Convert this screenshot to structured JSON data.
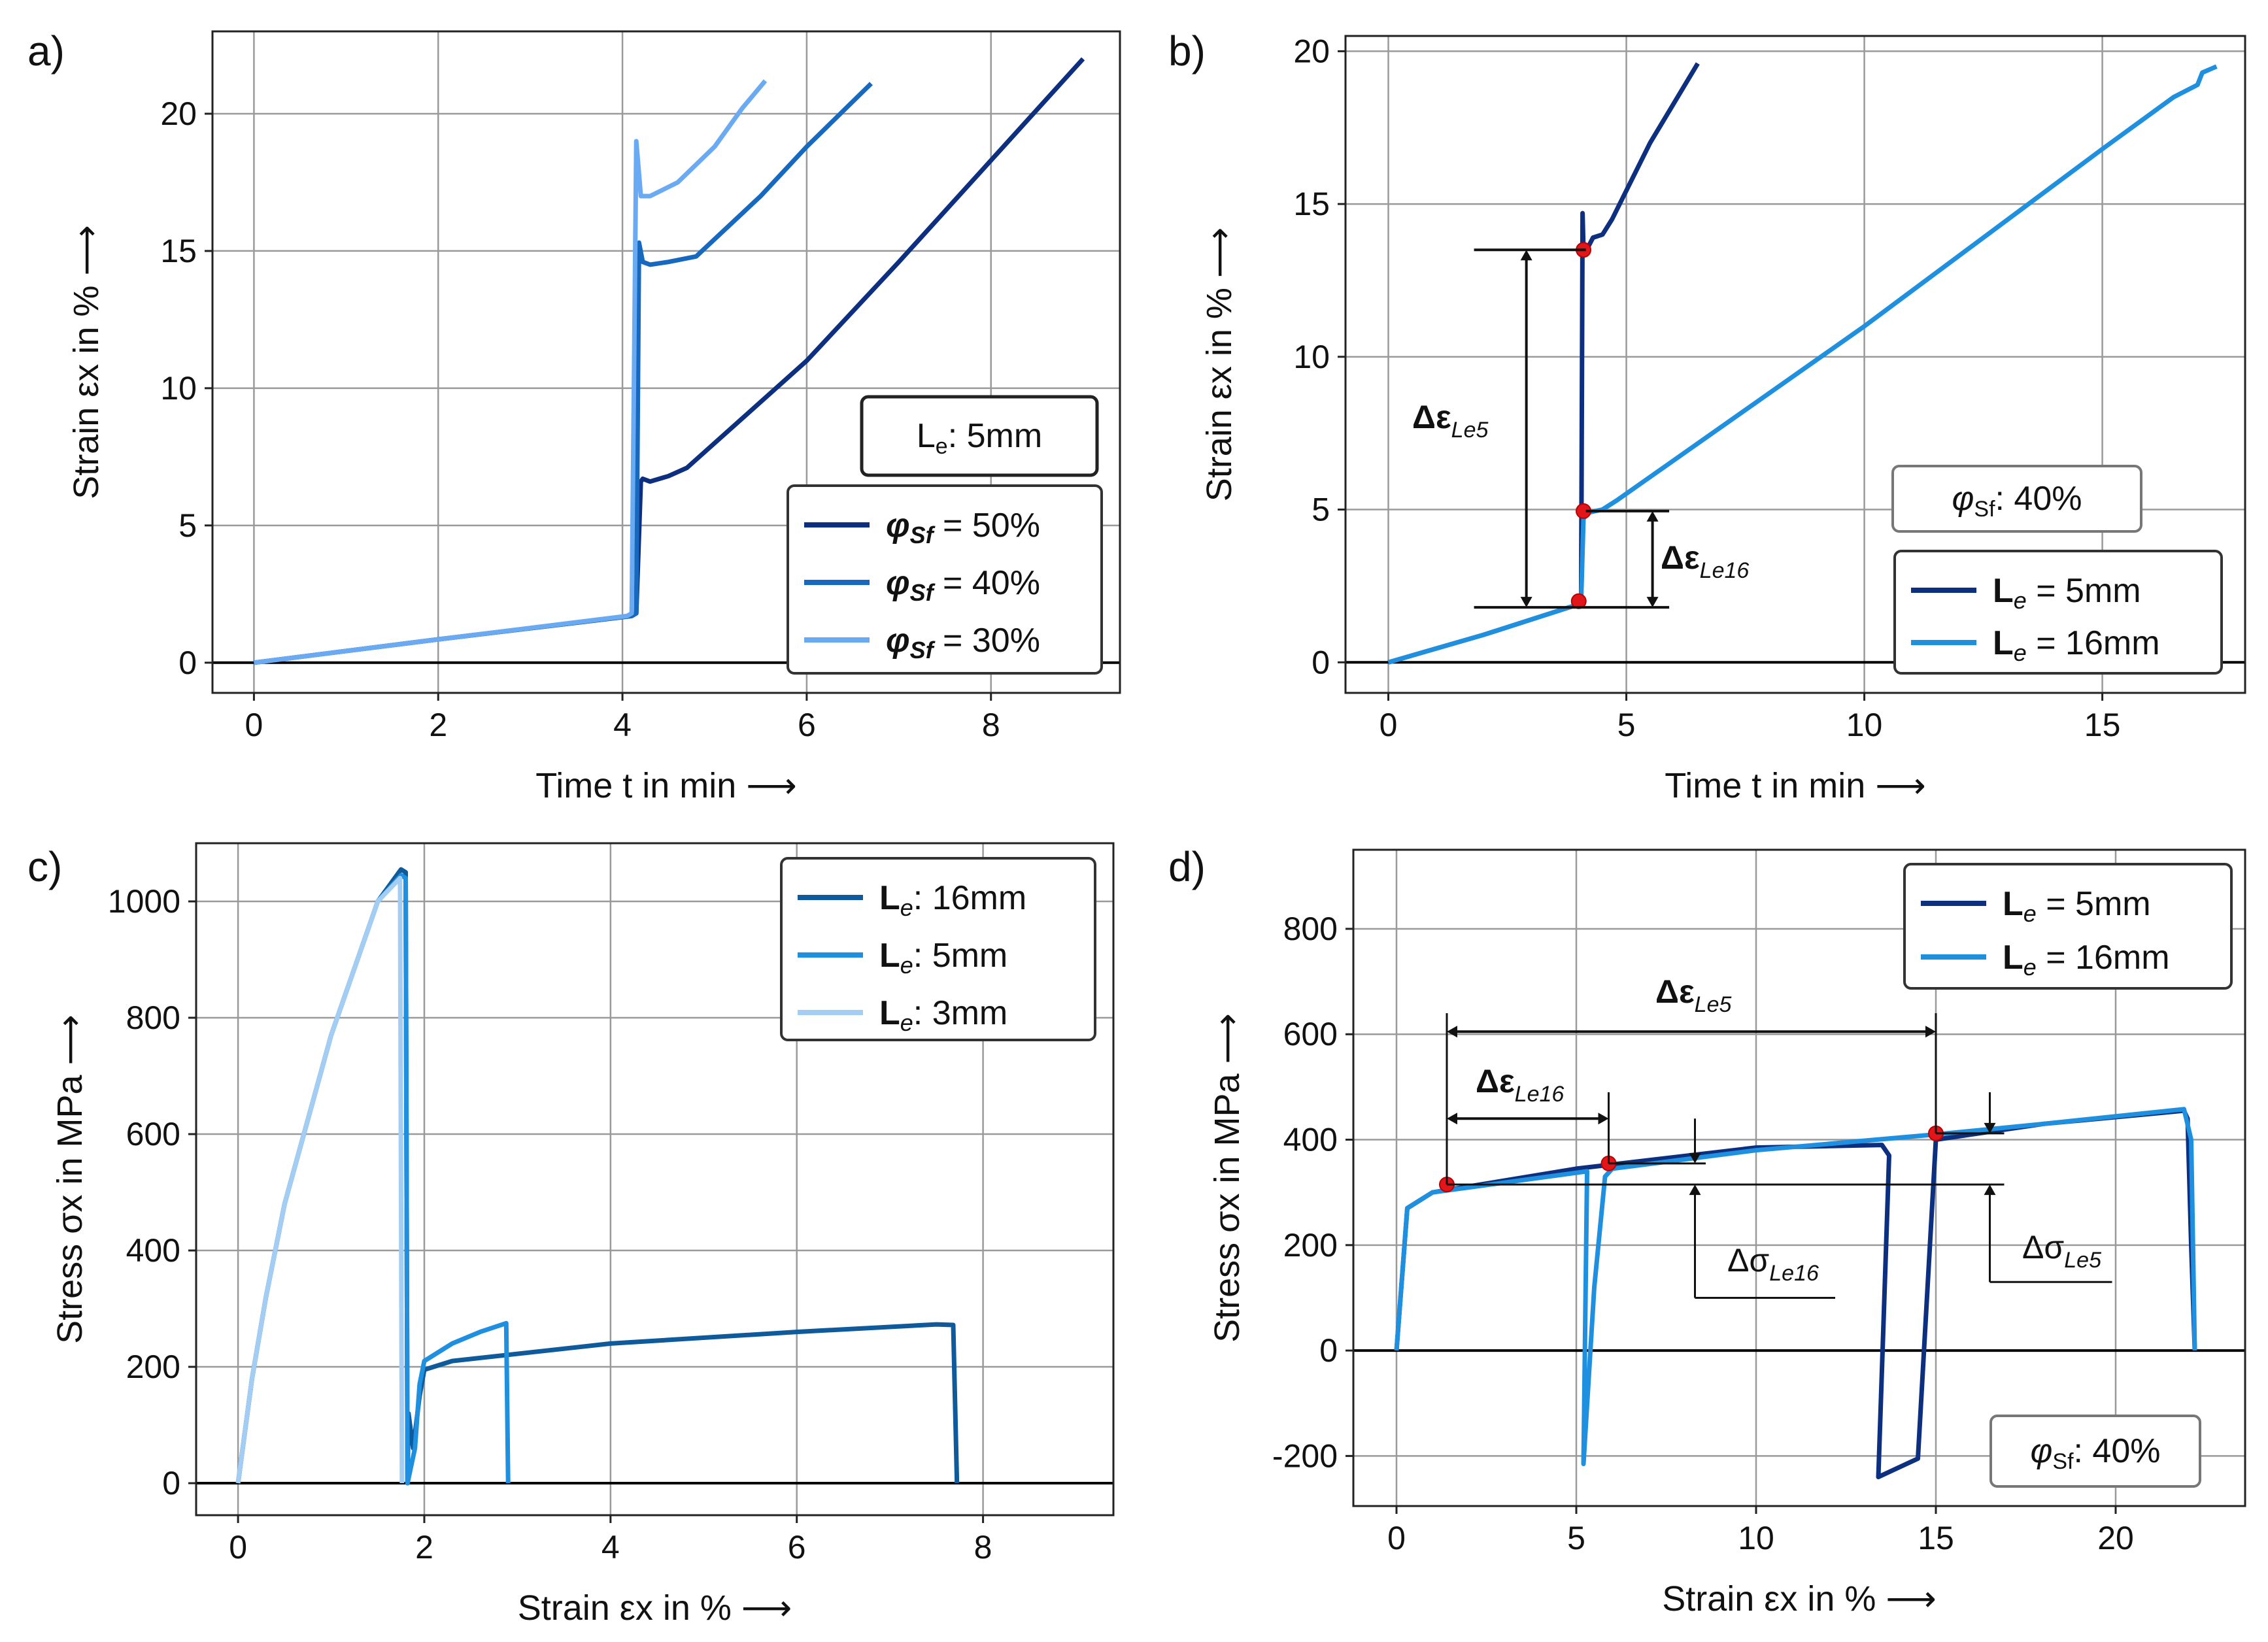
{
  "chart_data": [
    {
      "id": "a",
      "panel_label": "a)",
      "type": "line",
      "xlabel": "Time t in min",
      "ylabel": "Strain εx in %",
      "xlim": [
        -0.45,
        9.4
      ],
      "ylim": [
        -1.1,
        23.0
      ],
      "xticks": [
        0,
        2,
        4,
        6,
        8
      ],
      "yticks": [
        0,
        5,
        10,
        15,
        20
      ],
      "info_box": "Le: 5mm",
      "legend": {
        "location": "lower-right"
      },
      "series": [
        {
          "name": "φSf = 50%",
          "color": "#0d2f7f",
          "x": [
            0,
            2,
            4.1,
            4.15,
            4.2,
            4.22,
            4.3,
            4.5,
            4.7,
            6,
            7,
            8,
            9.0
          ],
          "y": [
            0,
            0.85,
            1.7,
            1.8,
            6.6,
            6.7,
            6.6,
            6.8,
            7.1,
            11.0,
            14.6,
            18.3,
            22.0
          ]
        },
        {
          "name": "φSf = 40%",
          "color": "#1769bf",
          "x": [
            0,
            2,
            4.1,
            4.15,
            4.18,
            4.22,
            4.3,
            4.5,
            4.8,
            5.5,
            6.0,
            6.7
          ],
          "y": [
            0,
            0.85,
            1.7,
            1.8,
            15.3,
            14.6,
            14.5,
            14.6,
            14.8,
            17.0,
            18.8,
            21.1
          ]
        },
        {
          "name": "φSf = 30%",
          "color": "#6aaaf2",
          "x": [
            0,
            2,
            4.05,
            4.1,
            4.15,
            4.2,
            4.3,
            4.6,
            5.0,
            5.3,
            5.55
          ],
          "y": [
            0,
            0.85,
            1.7,
            1.8,
            19.0,
            17.0,
            17.0,
            17.5,
            18.8,
            20.2,
            21.2
          ]
        }
      ]
    },
    {
      "id": "b",
      "panel_label": "b)",
      "type": "line",
      "xlabel": "Time t in min",
      "ylabel": "Strain εx in %",
      "xlim": [
        -0.9,
        18.0
      ],
      "ylim": [
        -1.0,
        20.5
      ],
      "xticks": [
        0,
        5,
        10,
        15
      ],
      "yticks": [
        0,
        5,
        10,
        15,
        20
      ],
      "info_box": "φSf: 40%",
      "legend": {
        "location": "lower-right"
      },
      "series": [
        {
          "name": "Le = 5mm",
          "color": "#0d2f7f",
          "x": [
            0,
            2,
            4.0,
            4.05,
            4.08,
            4.1,
            4.2,
            4.3,
            4.5,
            4.7,
            5.5,
            6.5
          ],
          "y": [
            0,
            0.9,
            1.9,
            2.0,
            14.7,
            13.5,
            13.6,
            13.9,
            14.0,
            14.5,
            17.0,
            19.6
          ]
        },
        {
          "name": "Le = 16mm",
          "color": "#1f90df",
          "x": [
            0,
            2,
            4.0,
            4.05,
            4.1,
            4.2,
            4.5,
            4.8,
            10,
            15,
            16.5,
            17.0,
            17.1,
            17.4
          ],
          "y": [
            0,
            0.9,
            1.9,
            2.0,
            4.7,
            4.9,
            5.0,
            5.3,
            11.0,
            16.8,
            18.5,
            18.9,
            19.3,
            19.5
          ]
        }
      ],
      "markers": [
        {
          "x": 4.1,
          "y": 13.5
        },
        {
          "x": 4.1,
          "y": 4.95
        },
        {
          "x": 4.0,
          "y": 2.0
        }
      ],
      "annotations": [
        {
          "text": "Δε",
          "sub": "Le5"
        },
        {
          "text": "Δε",
          "sub": "Le16"
        }
      ]
    },
    {
      "id": "c",
      "panel_label": "c)",
      "type": "line",
      "xlabel": "Strain εx in %",
      "ylabel": "Stress σx in MPa",
      "xlim": [
        -0.45,
        9.4
      ],
      "ylim": [
        -55,
        1100
      ],
      "xticks": [
        0,
        2,
        4,
        6,
        8
      ],
      "yticks": [
        0,
        200,
        400,
        600,
        800,
        1000
      ],
      "legend": {
        "location": "upper-right"
      },
      "series": [
        {
          "name": "Le: 16mm",
          "color": "#0e5a9a",
          "x": [
            0,
            0.15,
            0.3,
            0.5,
            1.0,
            1.5,
            1.75,
            1.8,
            1.82,
            1.83,
            1.88,
            1.95,
            2.0,
            2.3,
            4,
            6,
            7.5,
            7.68,
            7.72
          ],
          "y": [
            0,
            180,
            320,
            480,
            770,
            1000,
            1055,
            1050,
            0,
            120,
            60,
            150,
            195,
            210,
            240,
            260,
            273,
            272,
            0
          ]
        },
        {
          "name": "Le: 5mm",
          "color": "#1f90df",
          "x": [
            0,
            0.15,
            0.3,
            0.5,
            1.0,
            1.5,
            1.75,
            1.8,
            1.82,
            1.9,
            1.95,
            2.0,
            2.3,
            2.6,
            2.88,
            2.9
          ],
          "y": [
            0,
            180,
            320,
            480,
            770,
            1000,
            1045,
            1040,
            0,
            60,
            170,
            210,
            240,
            260,
            275,
            0
          ]
        },
        {
          "name": "Le: 3mm",
          "color": "#a3cdf2",
          "x": [
            0,
            0.15,
            0.3,
            0.5,
            1.0,
            1.5,
            1.74,
            1.76
          ],
          "y": [
            0,
            180,
            320,
            480,
            770,
            1000,
            1040,
            0
          ]
        }
      ]
    },
    {
      "id": "d",
      "panel_label": "d)",
      "type": "line",
      "xlabel": "Strain εx in %",
      "ylabel": "Stress σx in MPa",
      "xlim": [
        -1.2,
        23.6
      ],
      "ylim": [
        -295,
        950
      ],
      "xticks": [
        0,
        5,
        10,
        15,
        20
      ],
      "yticks": [
        -200,
        0,
        200,
        400,
        600,
        800
      ],
      "info_box": "φSf: 40%",
      "legend": {
        "location": "upper-right"
      },
      "series": [
        {
          "name": "Le = 5mm",
          "color": "#0d2f7f",
          "x": [
            0,
            0.3,
            1,
            5,
            10,
            13.5,
            13.7,
            13.4,
            14.5,
            15.0,
            18,
            21.9,
            22.0,
            22.1,
            22.2
          ],
          "y": [
            0,
            270,
            300,
            345,
            385,
            390,
            370,
            -240,
            -205,
            400,
            430,
            455,
            440,
            200,
            0
          ]
        },
        {
          "name": "Le = 16mm",
          "color": "#1f90df",
          "x": [
            0,
            0.3,
            1,
            5.3,
            5.2,
            5.5,
            5.8,
            6.0,
            10,
            15,
            18,
            21.9,
            22.1,
            22.2
          ],
          "y": [
            0,
            270,
            300,
            340,
            -215,
            120,
            330,
            345,
            380,
            410,
            430,
            458,
            400,
            0
          ]
        }
      ],
      "markers": [
        {
          "x": 1.4,
          "y": 315
        },
        {
          "x": 5.9,
          "y": 355
        },
        {
          "x": 15.0,
          "y": 412
        }
      ],
      "annotations": [
        {
          "text": "Δε",
          "sub": "Le5"
        },
        {
          "text": "Δε",
          "sub": "Le16"
        },
        {
          "text": "Δσ",
          "sub": "Le16"
        },
        {
          "text": "Δσ",
          "sub": "Le5"
        }
      ]
    }
  ]
}
